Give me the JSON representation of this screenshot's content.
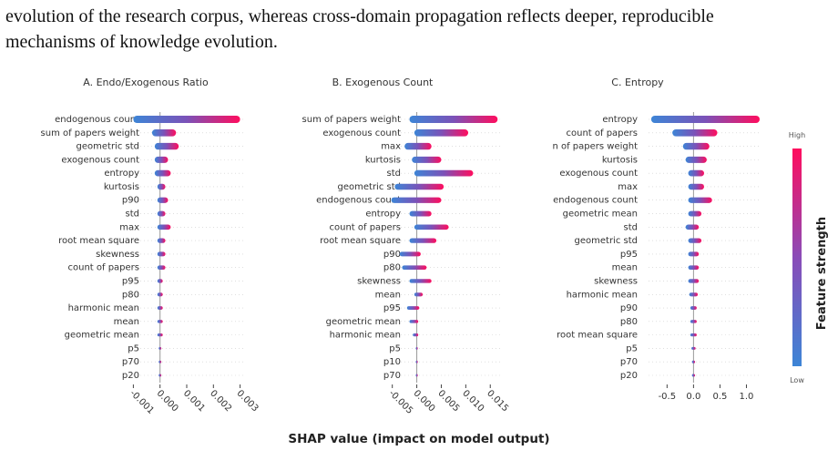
{
  "paragraph": [
    "evolution of the research corpus, whereas cross-domain propagation reflects deeper, reproducible",
    "mechanisms of knowledge evolution."
  ],
  "x_label": "SHAP value (impact on model output)",
  "colorbar": {
    "title": "Feature strength",
    "high": "High",
    "low": "Low"
  },
  "chart_data": [
    {
      "type": "beeswarm",
      "title": "A.  Endo/Exogenous Ratio",
      "features": [
        "endogenous count",
        "sum of papers weight",
        "geometric std",
        "exogenous count",
        "entropy",
        "kurtosis",
        "p90",
        "std",
        "max",
        "root mean square",
        "skewness",
        "count of papers",
        "p95",
        "p80",
        "harmonic mean",
        "mean",
        "geometric mean",
        "p5",
        "p70",
        "p20"
      ],
      "ranges": [
        [
          -0.001,
          0.003
        ],
        [
          -0.0003,
          0.0006
        ],
        [
          -0.0002,
          0.0007
        ],
        [
          -0.0002,
          0.0003
        ],
        [
          -0.0002,
          0.0004
        ],
        [
          -0.0001,
          0.0002
        ],
        [
          -0.0001,
          0.0003
        ],
        [
          -0.0001,
          0.0002
        ],
        [
          -0.0001,
          0.0004
        ],
        [
          -0.0001,
          0.0002
        ],
        [
          -0.0001,
          0.0002
        ],
        [
          -0.0001,
          0.0002
        ],
        [
          -0.0001,
          0.0001
        ],
        [
          -0.0001,
          0.0001
        ],
        [
          -0.0001,
          0.0001
        ],
        [
          -0.0001,
          0.0001
        ],
        [
          -0.0001,
          0.0001
        ],
        [
          -5e-05,
          5e-05
        ],
        [
          -5e-05,
          5e-05
        ],
        [
          -5e-05,
          5e-05
        ]
      ],
      "xlim": [
        -0.00115,
        0.00315
      ],
      "xticks": [
        -0.001,
        {
          "value": 0,
          "label": "0.000"
        },
        0.001,
        0.002,
        0.003
      ]
    },
    {
      "type": "beeswarm",
      "title": "B.  Exogenous Count",
      "features": [
        "sum of papers weight",
        "exogenous count",
        "max",
        "kurtosis",
        "std",
        "geometric std",
        "endogenous count",
        "entropy",
        "count of papers",
        "root mean square",
        "p90",
        "p80",
        "skewness",
        "mean",
        "p95",
        "geometric mean",
        "harmonic mean",
        "p5",
        "p10",
        "p70"
      ],
      "ranges": [
        [
          -0.0015,
          0.0165
        ],
        [
          -0.0005,
          0.0105
        ],
        [
          -0.0025,
          0.003
        ],
        [
          -0.001,
          0.005
        ],
        [
          -0.0005,
          0.0115
        ],
        [
          -0.0045,
          0.0055
        ],
        [
          -0.0052,
          0.005
        ],
        [
          -0.0015,
          0.003
        ],
        [
          -0.0005,
          0.0065
        ],
        [
          -0.0015,
          0.004
        ],
        [
          -0.0035,
          0.0008
        ],
        [
          -0.003,
          0.002
        ],
        [
          -0.0015,
          0.003
        ],
        [
          -0.0005,
          0.0012
        ],
        [
          -0.002,
          0.0005
        ],
        [
          -0.0015,
          0.0003
        ],
        [
          -0.0008,
          0.0003
        ],
        [
          -0.0002,
          0.0002
        ],
        [
          -0.0002,
          0.0002
        ],
        [
          -0.0002,
          0.0002
        ]
      ],
      "xlim": [
        -0.0055,
        0.017
      ],
      "xticks": [
        -0.005,
        {
          "value": 0,
          "label": "0.000"
        },
        0.005,
        {
          "value": 0.01,
          "label": "0.010"
        },
        0.015
      ]
    },
    {
      "type": "beeswarm",
      "title": "C.  Entropy",
      "features": [
        "entropy",
        "count of papers",
        "n of papers weight",
        "kurtosis",
        "exogenous count",
        "max",
        "endogenous count",
        "geometric mean",
        "std",
        "geometric std",
        "p95",
        "mean",
        "skewness",
        "harmonic mean",
        "p90",
        "p80",
        "root mean square",
        "p5",
        "p70",
        "p20"
      ],
      "ranges": [
        [
          -0.8,
          1.25
        ],
        [
          -0.4,
          0.45
        ],
        [
          -0.2,
          0.3
        ],
        [
          -0.15,
          0.25
        ],
        [
          -0.1,
          0.2
        ],
        [
          -0.1,
          0.2
        ],
        [
          -0.1,
          0.35
        ],
        [
          -0.1,
          0.15
        ],
        [
          -0.15,
          0.1
        ],
        [
          -0.1,
          0.15
        ],
        [
          -0.1,
          0.1
        ],
        [
          -0.1,
          0.1
        ],
        [
          -0.1,
          0.1
        ],
        [
          -0.08,
          0.08
        ],
        [
          -0.06,
          0.06
        ],
        [
          -0.06,
          0.06
        ],
        [
          -0.06,
          0.06
        ],
        [
          -0.04,
          0.04
        ],
        [
          -0.03,
          0.03
        ],
        [
          -0.03,
          0.03
        ]
      ],
      "xlim": [
        -0.85,
        1.25
      ],
      "xticks": [
        -0.5,
        {
          "value": 0,
          "label": "0.0"
        },
        0.5,
        {
          "value": 1,
          "label": "1.0"
        }
      ]
    }
  ]
}
